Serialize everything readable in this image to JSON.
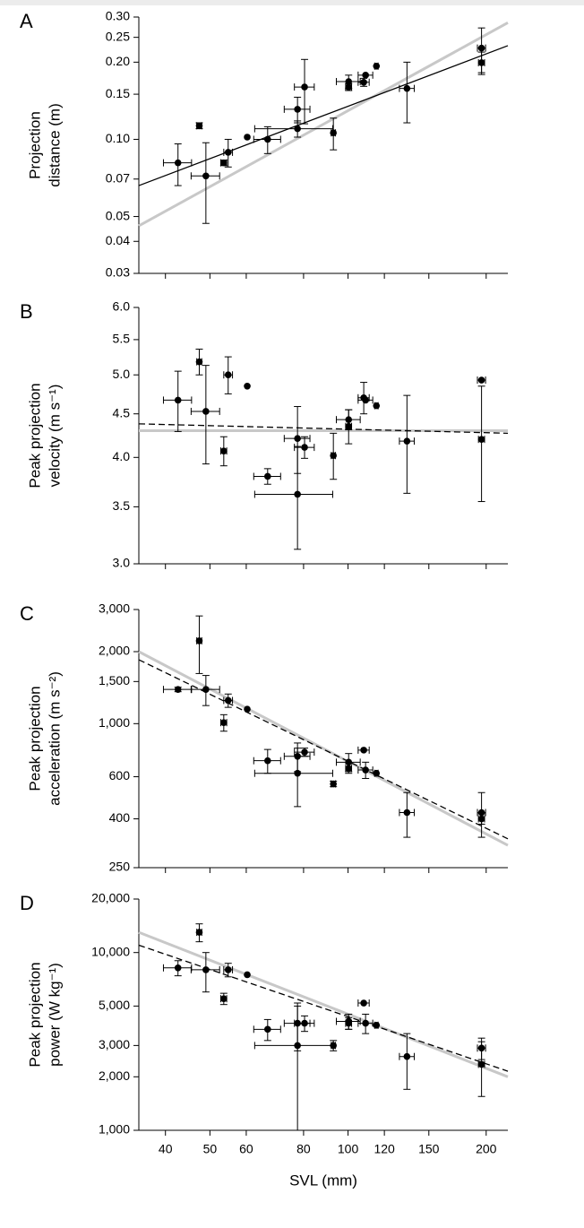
{
  "chart_data": [
    {
      "type": "scatter",
      "label": "A",
      "ylabel": [
        "Projection",
        "distance (m)"
      ],
      "log_x": true,
      "log_y": true,
      "xlim": [
        35,
        223
      ],
      "xticks": [
        40,
        50,
        60,
        80,
        100,
        120,
        150,
        200
      ],
      "show_xtick_labels": false,
      "ylim": [
        0.03,
        0.3
      ],
      "yticks": [
        0.03,
        0.04,
        0.05,
        0.07,
        {
          "value": 0.1,
          "label": "0.10"
        },
        0.15,
        {
          "value": 0.2,
          "label": "0.20"
        },
        0.25,
        {
          "value": 0.3,
          "label": "0.30"
        }
      ],
      "color": "#000000",
      "x": [
        42.6,
        47.4,
        49.0,
        53.6,
        54.8,
        60.3,
        66.8,
        77.6,
        77.6,
        80.4,
        92.9,
        100.3,
        100.3,
        108.2,
        109.2,
        115.3,
        134.4,
        195.4,
        195.4
      ],
      "xerr": [
        3,
        0.6,
        3.5,
        0.8,
        1.2,
        null,
        4.5,
        5,
        15,
        4,
        1,
        6,
        1.5,
        3,
        4,
        1,
        5,
        4,
        3
      ],
      "values": [
        0.081,
        0.113,
        0.072,
        0.081,
        0.089,
        0.102,
        0.1,
        0.131,
        0.11,
        0.16,
        0.106,
        0.168,
        0.16,
        0.167,
        0.178,
        0.193,
        0.158,
        0.227,
        0.199
      ],
      "yerr": [
        0.015,
        0.003,
        0.025,
        0.002,
        0.011,
        null,
        0.012,
        0.015,
        0.008,
        0.045,
        0.015,
        0.01,
        0.005,
        0.006,
        null,
        null,
        0.042,
        0.045,
        0.02
      ],
      "fits": [
        {
          "color": "#c8c8c8",
          "width": 3,
          "dash": false,
          "x": [
            35,
            223
          ],
          "y": [
            0.046,
            0.285
          ]
        },
        {
          "color": "#000000",
          "width": 1.3,
          "dash": false,
          "x": [
            35,
            223
          ],
          "y": [
            0.066,
            0.232
          ]
        }
      ]
    },
    {
      "type": "scatter",
      "label": "B",
      "ylabel": [
        "Peak projection",
        "velocity (m s⁻¹)"
      ],
      "log_x": true,
      "log_y": true,
      "xlim": [
        35,
        223
      ],
      "xticks": [
        40,
        50,
        60,
        80,
        100,
        120,
        150,
        200
      ],
      "show_xtick_labels": false,
      "ylim": [
        3,
        6
      ],
      "yticks": [
        {
          "value": 3,
          "label": "3.0"
        },
        3.5,
        {
          "value": 4,
          "label": "4.0"
        },
        4.5,
        {
          "value": 5,
          "label": "5.0"
        },
        5.5,
        {
          "value": 6,
          "label": "6.0"
        }
      ],
      "color": "#000000",
      "x": [
        42.6,
        47.4,
        49.0,
        53.6,
        54.8,
        60.3,
        66.8,
        77.6,
        77.6,
        80.4,
        92.9,
        100.3,
        100.3,
        108.2,
        109.2,
        115.3,
        134.4,
        195.4,
        195.4
      ],
      "xerr": [
        3,
        0.6,
        3.5,
        0.8,
        1.2,
        null,
        4.5,
        5,
        15,
        4,
        1,
        6,
        1.5,
        3,
        4,
        1,
        5,
        4,
        3
      ],
      "values": [
        4.67,
        5.18,
        4.53,
        4.07,
        5.0,
        4.85,
        3.8,
        4.21,
        3.62,
        4.11,
        4.02,
        4.43,
        4.35,
        4.7,
        4.67,
        4.6,
        4.18,
        4.93,
        4.2
      ],
      "yerr": [
        0.38,
        0.18,
        0.6,
        0.16,
        0.25,
        null,
        0.08,
        0.38,
        0.5,
        0.12,
        0.25,
        0.12,
        0.2,
        0.2,
        null,
        null,
        0.55,
        null,
        0.65
      ],
      "fits": [
        {
          "color": "#c8c8c8",
          "width": 3,
          "dash": false,
          "x": [
            35,
            223
          ],
          "y": [
            4.3,
            4.3
          ]
        },
        {
          "color": "#000000",
          "width": 1.3,
          "dash": true,
          "x": [
            35,
            223
          ],
          "y": [
            4.38,
            4.27
          ]
        }
      ]
    },
    {
      "type": "scatter",
      "label": "C",
      "ylabel": [
        "Peak projection",
        "acceleration (m s⁻²)"
      ],
      "log_x": true,
      "log_y": true,
      "xlim": [
        35,
        223
      ],
      "xticks": [
        40,
        50,
        60,
        80,
        100,
        120,
        150,
        200
      ],
      "show_xtick_labels": false,
      "ylim": [
        250,
        3000
      ],
      "yticks": [
        250,
        400,
        600,
        {
          "value": 1000,
          "label": "1,000"
        },
        {
          "value": 1500,
          "label": "1,500"
        },
        {
          "value": 2000,
          "label": "2,000"
        },
        {
          "value": 3000,
          "label": "3,000"
        }
      ],
      "color": "#000000",
      "x": [
        42.6,
        47.4,
        49.0,
        53.6,
        54.8,
        60.3,
        66.8,
        77.6,
        77.6,
        80.4,
        92.9,
        100.3,
        100.3,
        108.2,
        109.2,
        115.3,
        134.4,
        195.4,
        195.4
      ],
      "xerr": [
        3,
        0.6,
        3.5,
        0.8,
        1.2,
        null,
        4.5,
        5,
        15,
        4,
        1,
        6,
        1.5,
        3,
        4,
        1,
        5,
        4,
        3
      ],
      "values": [
        1390,
        2220,
        1390,
        1010,
        1250,
        1150,
        700,
        730,
        620,
        760,
        560,
        690,
        650,
        775,
        640,
        620,
        425,
        425,
        400
      ],
      "yerr": [
        30,
        600,
        200,
        80,
        80,
        null,
        80,
        100,
        170,
        30,
        15,
        60,
        30,
        null,
        50,
        null,
        90,
        90,
        20
      ],
      "fits": [
        {
          "color": "#c8c8c8",
          "width": 3,
          "dash": false,
          "x": [
            35,
            223
          ],
          "y": [
            2000,
            310
          ]
        },
        {
          "color": "#000000",
          "width": 1.3,
          "dash": true,
          "x": [
            35,
            223
          ],
          "y": [
            1850,
            330
          ]
        }
      ]
    },
    {
      "type": "scatter",
      "label": "D",
      "ylabel": [
        "Peak projection",
        "power (W kg⁻¹)"
      ],
      "log_x": true,
      "log_y": true,
      "xlim": [
        35,
        223
      ],
      "xticks": [
        40,
        50,
        60,
        80,
        100,
        120,
        150,
        200
      ],
      "show_xtick_labels": true,
      "xlabel": "SVL (mm)",
      "ylim": [
        1000,
        20000
      ],
      "yticks": [
        {
          "value": 1000,
          "label": "1,000"
        },
        {
          "value": 2000,
          "label": "2,000"
        },
        {
          "value": 3000,
          "label": "3,000"
        },
        {
          "value": 5000,
          "label": "5,000"
        },
        {
          "value": 10000,
          "label": "10,000"
        },
        {
          "value": 20000,
          "label": "20,000"
        }
      ],
      "color": "#000000",
      "x": [
        42.6,
        47.4,
        49.0,
        53.6,
        54.8,
        60.3,
        66.8,
        77.6,
        77.6,
        80.4,
        92.9,
        100.3,
        100.3,
        108.2,
        109.2,
        115.3,
        134.4,
        195.4,
        195.4
      ],
      "xerr": [
        3,
        0.6,
        3.5,
        0.8,
        1.2,
        null,
        4.5,
        5,
        15,
        4,
        1,
        6,
        1.5,
        3,
        4,
        1,
        5,
        4,
        3
      ],
      "values": [
        8200,
        13000,
        8000,
        5500,
        8000,
        7500,
        3700,
        4000,
        3000,
        4000,
        3000,
        4100,
        4000,
        5200,
        4000,
        3900,
        2600,
        2900,
        2350
      ],
      "yerr": [
        800,
        1500,
        2000,
        400,
        700,
        null,
        500,
        1200,
        2000,
        400,
        200,
        400,
        300,
        null,
        500,
        null,
        900,
        400,
        800
      ],
      "fits": [
        {
          "color": "#c8c8c8",
          "width": 3,
          "dash": false,
          "x": [
            35,
            223
          ],
          "y": [
            13000,
            2000
          ]
        },
        {
          "color": "#000000",
          "width": 1.3,
          "dash": true,
          "x": [
            35,
            223
          ],
          "y": [
            11000,
            2150
          ]
        }
      ]
    }
  ]
}
